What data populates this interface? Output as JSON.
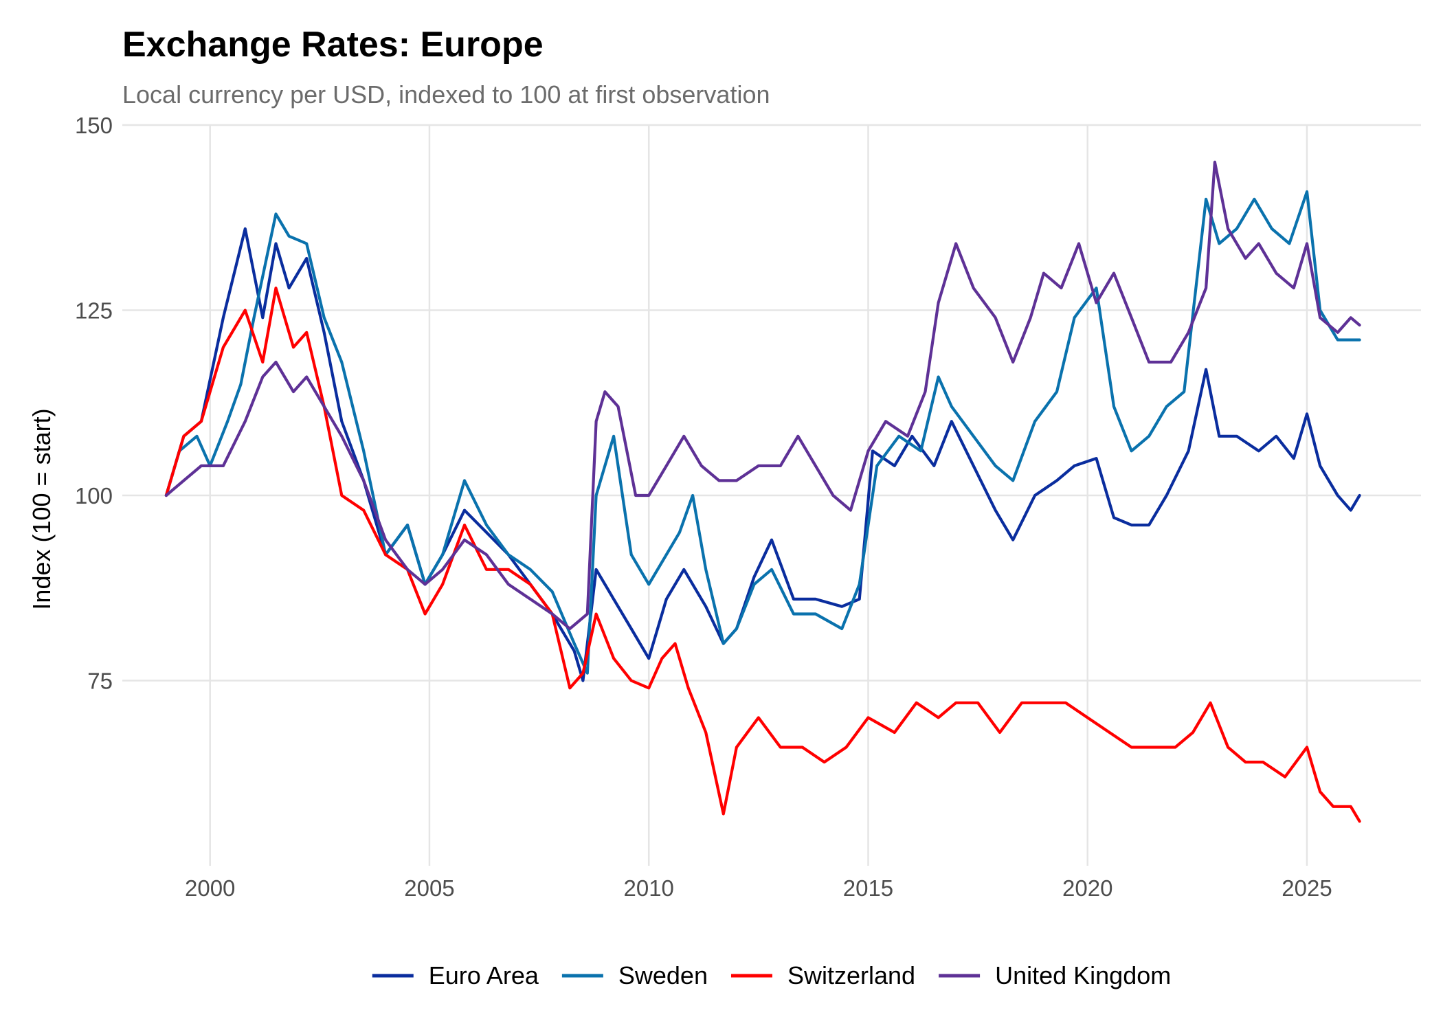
{
  "chart_data": {
    "type": "line",
    "title": "Exchange Rates: Europe",
    "subtitle": "Local currency per USD, indexed to 100 at first observation",
    "xlabel": "",
    "ylabel": "Index (100 = start)",
    "xlim": [
      1998.0,
      2027.6
    ],
    "ylim": [
      50,
      150
    ],
    "x_ticks": [
      2000,
      2005,
      2010,
      2015,
      2020,
      2025
    ],
    "x_tick_labels": [
      "2000",
      "2005",
      "2010",
      "2015",
      "2020",
      "2025"
    ],
    "y_ticks": [
      75,
      100,
      125,
      150
    ],
    "y_tick_labels": [
      "75",
      "100",
      "125",
      "150"
    ],
    "grid": true,
    "legend": "bottom",
    "series": [
      {
        "name": "Euro Area",
        "color": "#0a2d9e",
        "x": [
          1999.0,
          1999.4,
          1999.8,
          2000.3,
          2000.8,
          2001.2,
          2001.5,
          2001.8,
          2002.2,
          2002.6,
          2003.0,
          2003.5,
          2004.0,
          2004.5,
          2004.9,
          2005.3,
          2005.8,
          2006.3,
          2006.8,
          2007.3,
          2007.8,
          2008.3,
          2008.5,
          2008.8,
          2009.2,
          2009.6,
          2010.0,
          2010.4,
          2010.8,
          2011.3,
          2011.7,
          2012.0,
          2012.4,
          2012.8,
          2013.3,
          2013.8,
          2014.4,
          2014.8,
          2015.1,
          2015.6,
          2016.0,
          2016.5,
          2016.9,
          2017.4,
          2017.9,
          2018.3,
          2018.8,
          2019.3,
          2019.7,
          2020.2,
          2020.6,
          2021.0,
          2021.4,
          2021.8,
          2022.3,
          2022.7,
          2023.0,
          2023.4,
          2023.9,
          2024.3,
          2024.7,
          2025.0,
          2025.3,
          2025.7,
          2026.0,
          2026.2
        ],
        "values": [
          100,
          108,
          110,
          124,
          136,
          124,
          134,
          128,
          132,
          122,
          110,
          102,
          92,
          96,
          88,
          92,
          98,
          95,
          92,
          88,
          84,
          79,
          75,
          90,
          86,
          82,
          78,
          86,
          90,
          85,
          80,
          82,
          89,
          94,
          86,
          86,
          85,
          86,
          106,
          104,
          108,
          104,
          110,
          104,
          98,
          94,
          100,
          102,
          104,
          105,
          97,
          96,
          96,
          100,
          106,
          117,
          108,
          108,
          106,
          108,
          105,
          111,
          104,
          100,
          98,
          100
        ]
      },
      {
        "name": "Sweden",
        "color": "#0a72ad",
        "x": [
          1999.0,
          1999.3,
          1999.7,
          2000.0,
          2000.4,
          2000.7,
          2001.0,
          2001.5,
          2001.8,
          2002.2,
          2002.6,
          2003.0,
          2003.5,
          2004.0,
          2004.5,
          2004.9,
          2005.3,
          2005.8,
          2006.3,
          2006.8,
          2007.3,
          2007.8,
          2008.3,
          2008.6,
          2008.8,
          2009.2,
          2009.6,
          2010.0,
          2010.4,
          2010.7,
          2011.0,
          2011.3,
          2011.7,
          2012.0,
          2012.4,
          2012.8,
          2013.3,
          2013.8,
          2014.4,
          2014.8,
          2015.2,
          2015.7,
          2016.2,
          2016.6,
          2016.9,
          2017.4,
          2017.9,
          2018.3,
          2018.8,
          2019.3,
          2019.7,
          2020.2,
          2020.6,
          2021.0,
          2021.4,
          2021.8,
          2022.2,
          2022.7,
          2023.0,
          2023.4,
          2023.8,
          2024.2,
          2024.6,
          2025.0,
          2025.3,
          2025.7,
          2026.0,
          2026.2
        ],
        "values": [
          100,
          106,
          108,
          104,
          110,
          115,
          124,
          138,
          135,
          134,
          124,
          118,
          106,
          92,
          96,
          88,
          92,
          102,
          96,
          92,
          90,
          87,
          80,
          76,
          100,
          108,
          92,
          88,
          92,
          95,
          100,
          90,
          80,
          82,
          88,
          90,
          84,
          84,
          82,
          88,
          104,
          108,
          106,
          116,
          112,
          108,
          104,
          102,
          110,
          114,
          124,
          128,
          112,
          106,
          108,
          112,
          114,
          140,
          134,
          136,
          140,
          136,
          134,
          141,
          125,
          121,
          121,
          121
        ]
      },
      {
        "name": "Switzerland",
        "color": "#ff0000",
        "x": [
          1999.0,
          1999.4,
          1999.8,
          2000.3,
          2000.8,
          2001.2,
          2001.5,
          2001.9,
          2002.2,
          2002.6,
          2003.0,
          2003.5,
          2004.0,
          2004.5,
          2004.9,
          2005.3,
          2005.8,
          2006.3,
          2006.8,
          2007.3,
          2007.8,
          2008.2,
          2008.5,
          2008.8,
          2009.2,
          2009.6,
          2010.0,
          2010.3,
          2010.6,
          2010.9,
          2011.3,
          2011.7,
          2012.0,
          2012.5,
          2013.0,
          2013.5,
          2014.0,
          2014.5,
          2015.0,
          2015.6,
          2016.1,
          2016.6,
          2017.0,
          2017.5,
          2018.0,
          2018.5,
          2019.0,
          2019.5,
          2020.0,
          2020.5,
          2021.0,
          2021.5,
          2022.0,
          2022.4,
          2022.8,
          2023.2,
          2023.6,
          2024.0,
          2024.5,
          2025.0,
          2025.3,
          2025.6,
          2026.0,
          2026.2
        ],
        "values": [
          100,
          108,
          110,
          120,
          125,
          118,
          128,
          120,
          122,
          112,
          100,
          98,
          92,
          90,
          84,
          88,
          96,
          90,
          90,
          88,
          84,
          74,
          76,
          84,
          78,
          75,
          74,
          78,
          80,
          74,
          68,
          57,
          66,
          70,
          66,
          66,
          64,
          66,
          70,
          68,
          72,
          70,
          72,
          72,
          68,
          72,
          72,
          72,
          70,
          68,
          66,
          66,
          66,
          68,
          72,
          66,
          64,
          64,
          62,
          66,
          60,
          58,
          58,
          56
        ]
      },
      {
        "name": "United Kingdom",
        "color": "#5e3196",
        "x": [
          1999.0,
          1999.4,
          1999.8,
          2000.3,
          2000.8,
          2001.2,
          2001.5,
          2001.9,
          2002.2,
          2002.6,
          2003.0,
          2003.5,
          2004.0,
          2004.5,
          2004.9,
          2005.3,
          2005.8,
          2006.3,
          2006.8,
          2007.3,
          2007.8,
          2008.2,
          2008.6,
          2008.8,
          2009.0,
          2009.3,
          2009.7,
          2010.0,
          2010.4,
          2010.8,
          2011.2,
          2011.6,
          2012.0,
          2012.5,
          2013.0,
          2013.4,
          2013.8,
          2014.2,
          2014.6,
          2015.0,
          2015.4,
          2015.9,
          2016.3,
          2016.6,
          2017.0,
          2017.4,
          2017.9,
          2018.3,
          2018.7,
          2019.0,
          2019.4,
          2019.8,
          2020.2,
          2020.6,
          2021.0,
          2021.4,
          2021.9,
          2022.3,
          2022.7,
          2022.9,
          2023.2,
          2023.6,
          2023.9,
          2024.3,
          2024.7,
          2025.0,
          2025.3,
          2025.7,
          2026.0,
          2026.2
        ],
        "values": [
          100,
          102,
          104,
          104,
          110,
          116,
          118,
          114,
          116,
          112,
          108,
          102,
          94,
          90,
          88,
          90,
          94,
          92,
          88,
          86,
          84,
          82,
          84,
          110,
          114,
          112,
          100,
          100,
          104,
          108,
          104,
          102,
          102,
          104,
          104,
          108,
          104,
          100,
          98,
          106,
          110,
          108,
          114,
          126,
          134,
          128,
          124,
          118,
          124,
          130,
          128,
          134,
          126,
          130,
          124,
          118,
          118,
          122,
          128,
          145,
          136,
          132,
          134,
          130,
          128,
          134,
          124,
          122,
          124,
          123
        ]
      }
    ]
  }
}
